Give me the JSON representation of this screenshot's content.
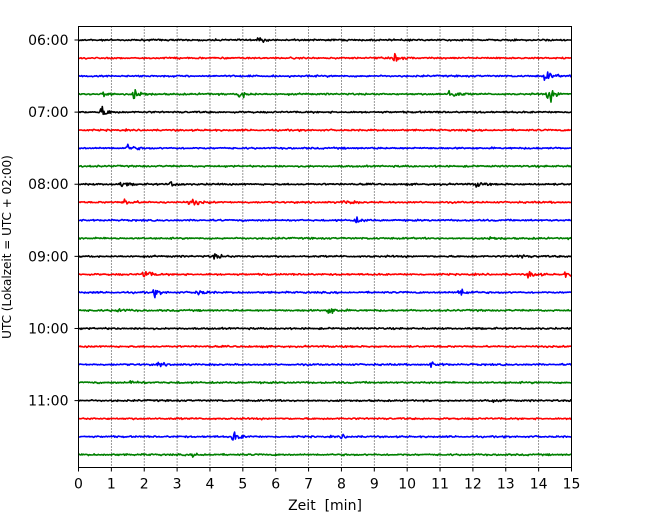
{
  "chart_data": {
    "type": "line",
    "title": "",
    "xlabel": "Zeit  [min]",
    "ylabel": "UTC (Lokalzeit = UTC + 02:00)",
    "xlim": [
      0,
      15
    ],
    "x_ticks": [
      0,
      1,
      2,
      3,
      4,
      5,
      6,
      7,
      8,
      9,
      10,
      11,
      12,
      13,
      14,
      15
    ],
    "x_tick_labels": [
      "0",
      "1",
      "2",
      "3",
      "4",
      "5",
      "6",
      "7",
      "8",
      "9",
      "10",
      "11",
      "12",
      "13",
      "14",
      "15"
    ],
    "x_grid": "dotted vertical lines at each minute",
    "trace_interval_min": 15,
    "y_tick_labels": [
      "06:00",
      "07:00",
      "08:00",
      "09:00",
      "10:00",
      "11:00"
    ],
    "colors": [
      "#000000",
      "#ff0000",
      "#0000ff",
      "#008000"
    ],
    "series": [
      {
        "start": "06:00",
        "color": "#000000",
        "events": [
          {
            "x": 5.5,
            "amp": 0.4
          }
        ]
      },
      {
        "start": "06:15",
        "color": "#ff0000",
        "events": [
          {
            "x": 9.6,
            "amp": 0.6
          }
        ]
      },
      {
        "start": "06:30",
        "color": "#0000ff",
        "events": [
          {
            "x": 14.2,
            "amp": 1.0
          }
        ]
      },
      {
        "start": "06:45",
        "color": "#008000",
        "events": [
          {
            "x": 0.7,
            "amp": 0.8
          },
          {
            "x": 1.7,
            "amp": 1.1
          },
          {
            "x": 4.9,
            "amp": 0.9
          },
          {
            "x": 11.3,
            "amp": 1.0
          },
          {
            "x": 14.3,
            "amp": 1.5
          }
        ]
      },
      {
        "start": "07:00",
        "color": "#000000",
        "events": [
          {
            "x": 0.7,
            "amp": 1.0
          }
        ]
      },
      {
        "start": "07:15",
        "color": "#ff0000",
        "events": []
      },
      {
        "start": "07:30",
        "color": "#0000ff",
        "events": [
          {
            "x": 1.5,
            "amp": 0.6
          }
        ]
      },
      {
        "start": "07:45",
        "color": "#008000",
        "events": []
      },
      {
        "start": "08:00",
        "color": "#000000",
        "events": [
          {
            "x": 1.3,
            "amp": 0.4
          },
          {
            "x": 2.8,
            "amp": 0.4
          },
          {
            "x": 12.1,
            "amp": 0.5
          }
        ]
      },
      {
        "start": "08:15",
        "color": "#ff0000",
        "events": [
          {
            "x": 1.4,
            "amp": 0.7
          },
          {
            "x": 3.4,
            "amp": 0.9
          },
          {
            "x": 8.1,
            "amp": 0.5
          }
        ]
      },
      {
        "start": "08:30",
        "color": "#0000ff",
        "events": [
          {
            "x": 8.4,
            "amp": 0.6
          }
        ]
      },
      {
        "start": "08:45",
        "color": "#008000",
        "events": [
          {
            "x": 12.5,
            "amp": 0.3
          }
        ]
      },
      {
        "start": "09:00",
        "color": "#000000",
        "events": [
          {
            "x": 4.1,
            "amp": 0.6
          },
          {
            "x": 13.4,
            "amp": 0.4
          }
        ]
      },
      {
        "start": "09:15",
        "color": "#ff0000",
        "events": [
          {
            "x": 2.0,
            "amp": 0.9
          },
          {
            "x": 13.7,
            "amp": 0.7
          },
          {
            "x": 14.8,
            "amp": 0.4
          }
        ]
      },
      {
        "start": "09:30",
        "color": "#0000ff",
        "events": [
          {
            "x": 2.3,
            "amp": 0.6
          },
          {
            "x": 3.6,
            "amp": 0.6
          },
          {
            "x": 11.6,
            "amp": 1.0
          }
        ]
      },
      {
        "start": "09:45",
        "color": "#008000",
        "events": [
          {
            "x": 1.2,
            "amp": 0.4
          },
          {
            "x": 7.6,
            "amp": 0.8
          }
        ]
      },
      {
        "start": "10:00",
        "color": "#000000",
        "events": []
      },
      {
        "start": "10:15",
        "color": "#ff0000",
        "events": []
      },
      {
        "start": "10:30",
        "color": "#0000ff",
        "events": [
          {
            "x": 2.4,
            "amp": 0.4
          },
          {
            "x": 10.7,
            "amp": 0.5
          }
        ]
      },
      {
        "start": "10:45",
        "color": "#008000",
        "events": [
          {
            "x": 1.6,
            "amp": 0.5
          }
        ]
      },
      {
        "start": "11:00",
        "color": "#000000",
        "events": [
          {
            "x": 12.4,
            "amp": 0.3
          }
        ]
      },
      {
        "start": "11:15",
        "color": "#ff0000",
        "events": []
      },
      {
        "start": "11:30",
        "color": "#0000ff",
        "events": [
          {
            "x": 4.7,
            "amp": 0.9
          },
          {
            "x": 8.0,
            "amp": 0.3
          }
        ]
      },
      {
        "start": "11:45",
        "color": "#008000",
        "events": [
          {
            "x": 3.5,
            "amp": 0.3
          }
        ]
      }
    ]
  }
}
